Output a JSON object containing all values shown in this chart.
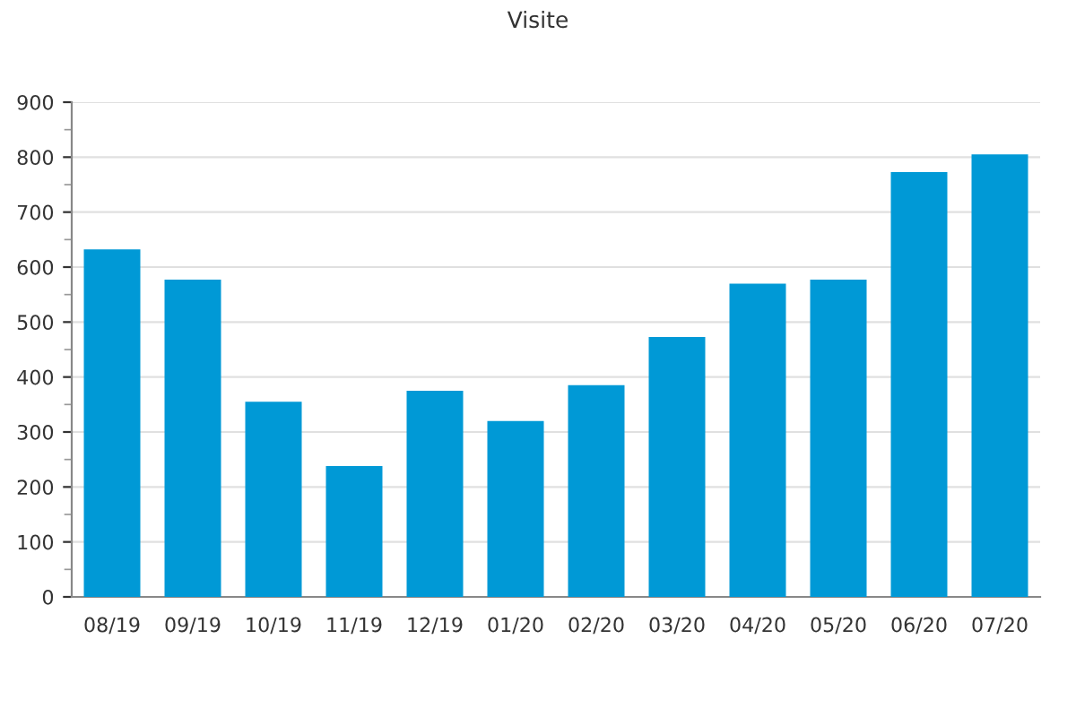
{
  "chart_data": {
    "type": "bar",
    "title": "Visite",
    "categories": [
      "08/19",
      "09/19",
      "10/19",
      "11/19",
      "12/19",
      "01/20",
      "02/20",
      "03/20",
      "04/20",
      "05/20",
      "06/20",
      "07/20"
    ],
    "values": [
      632,
      577,
      355,
      238,
      375,
      320,
      385,
      473,
      570,
      577,
      773,
      805
    ],
    "color": "#0099d6",
    "ylim": [
      0,
      900
    ],
    "yticks": [
      0,
      100,
      200,
      300,
      400,
      500,
      600,
      700,
      800,
      900
    ],
    "grid": "y"
  }
}
